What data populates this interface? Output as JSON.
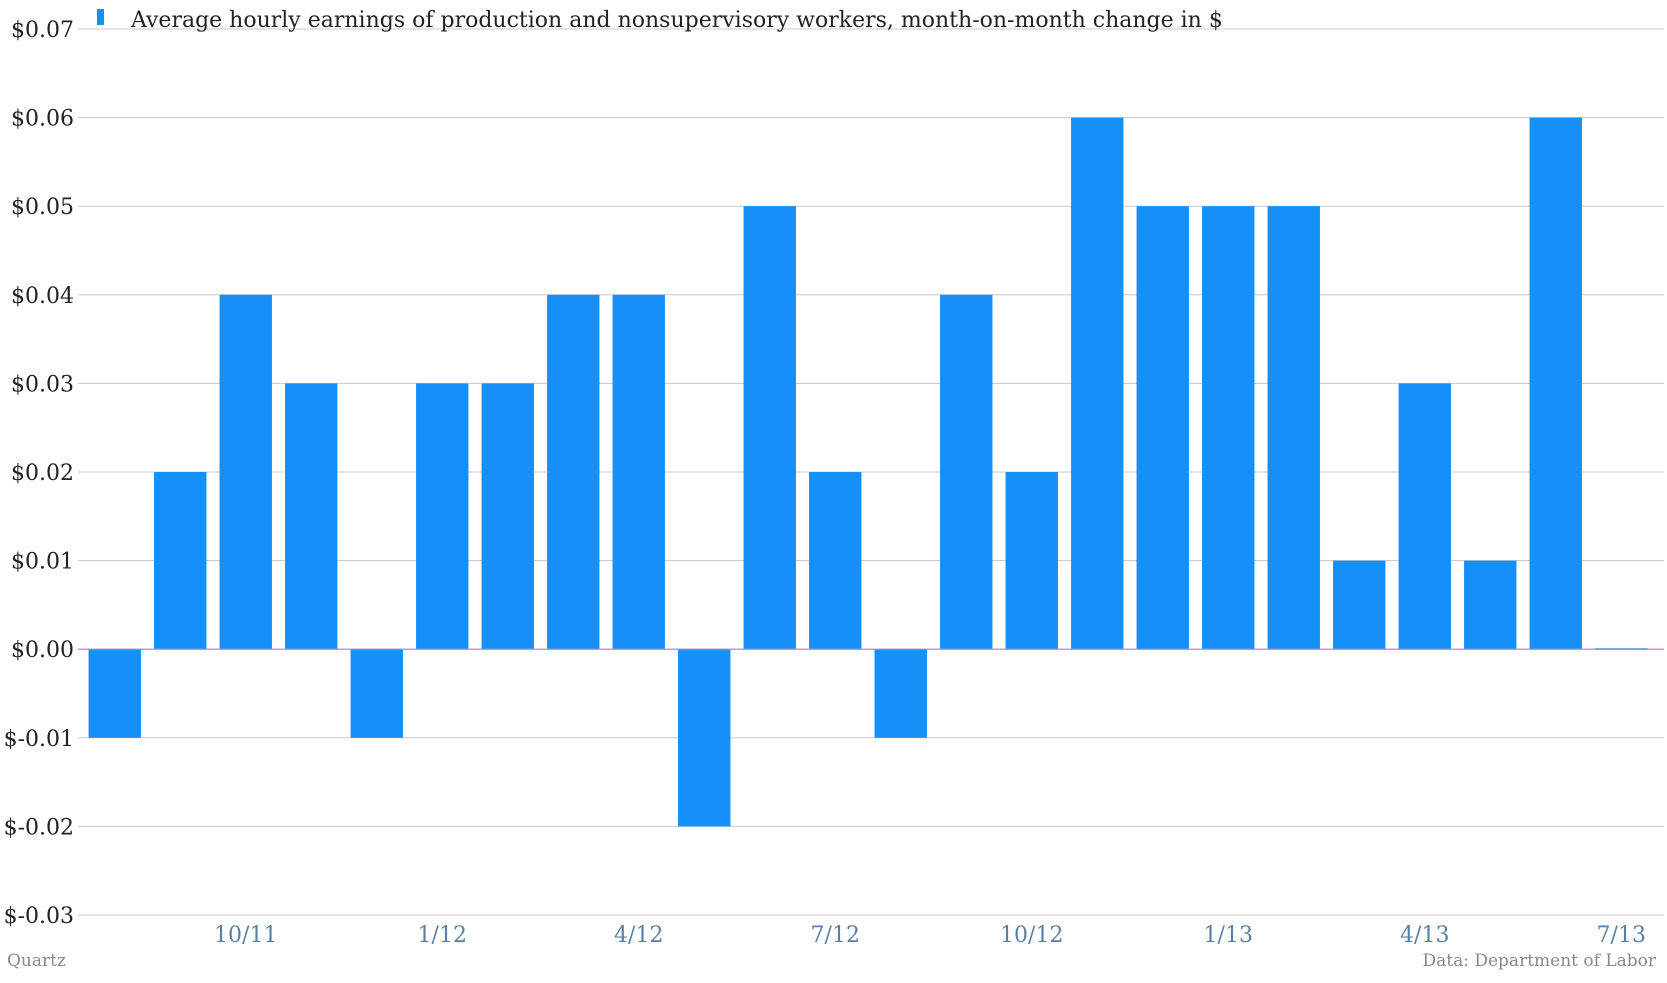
{
  "chart_data": {
    "type": "bar",
    "legend": {
      "label": "Average hourly earnings of production and nonsupervisory workers, month-on-month change in $",
      "color": "#168ff8",
      "placement": "top-left"
    },
    "series": [
      {
        "name": "Average hourly earnings of production and nonsupervisory workers, month-on-month change in $",
        "color": "#168ff8",
        "values": [
          -0.01,
          0.02,
          0.04,
          0.03,
          -0.01,
          0.03,
          0.03,
          0.04,
          0.04,
          -0.02,
          0.05,
          0.02,
          -0.01,
          0.04,
          0.02,
          0.06,
          0.05,
          0.05,
          0.05,
          0.01,
          0.03,
          0.01,
          0.06,
          0.0
        ]
      }
    ],
    "categories": [
      "8/11",
      "9/11",
      "10/11",
      "11/11",
      "12/11",
      "1/12",
      "2/12",
      "3/12",
      "4/12",
      "5/12",
      "6/12",
      "7/12",
      "8/12",
      "9/12",
      "10/12",
      "11/12",
      "12/12",
      "1/13",
      "2/13",
      "3/13",
      "4/13",
      "5/13",
      "6/13",
      "7/13"
    ],
    "x_tick_labels": [
      {
        "label": "10/11",
        "index": 2
      },
      {
        "label": "1/12",
        "index": 5
      },
      {
        "label": "4/12",
        "index": 8
      },
      {
        "label": "7/12",
        "index": 11
      },
      {
        "label": "10/12",
        "index": 14
      },
      {
        "label": "1/13",
        "index": 17
      },
      {
        "label": "4/13",
        "index": 20
      },
      {
        "label": "7/13",
        "index": 23
      }
    ],
    "y_ticks": [
      0.07,
      0.06,
      0.05,
      0.04,
      0.03,
      0.02,
      0.01,
      0.0,
      -0.01,
      -0.02,
      -0.03
    ],
    "y_tick_labels": [
      "$0.07",
      "$0.06",
      "$0.05",
      "$0.04",
      "$0.03",
      "$0.02",
      "$0.01",
      "$0.00",
      "$-0.01",
      "$-0.02",
      "$-0.03"
    ],
    "ylim": [
      -0.03,
      0.07
    ],
    "grid": true,
    "zero_line_color": "#c080c0"
  },
  "footer": {
    "source_left": "Quartz",
    "source_right": "Data: Department of Labor"
  }
}
